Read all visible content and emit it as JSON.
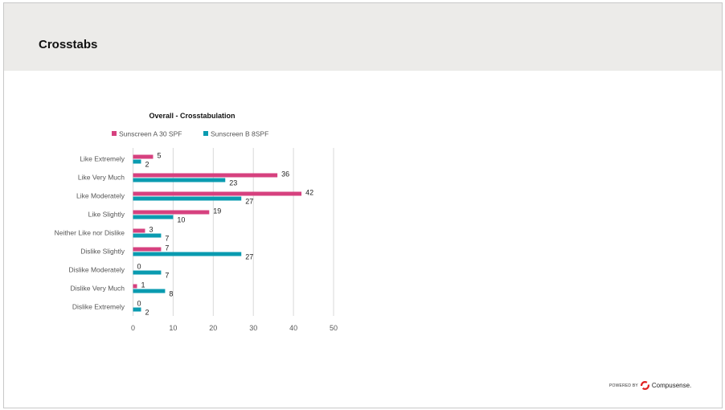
{
  "header": {
    "title": "Crosstabs"
  },
  "footer": {
    "powered_by": "POWERED BY",
    "brand": "Compusense."
  },
  "colors": {
    "series_a": "#d6417f",
    "series_b": "#0a9bb0",
    "header_bg": "#ecebe9"
  },
  "chart_data": {
    "type": "bar",
    "orientation": "horizontal",
    "title": "Overall - Crosstabulation",
    "categories": [
      "Like Extremely",
      "Like Very Much",
      "Like Moderately",
      "Like Slightly",
      "Neither Like nor Dislike",
      "Dislike Slightly",
      "Dislike Moderately",
      "Dislike Very Much",
      "Dislike Extremely"
    ],
    "series": [
      {
        "name": "Sunscreen A 30 SPF",
        "values": [
          5,
          36,
          42,
          19,
          3,
          7,
          0,
          1,
          0
        ]
      },
      {
        "name": "Sunscreen B 8SPF",
        "values": [
          2,
          23,
          27,
          10,
          7,
          27,
          7,
          8,
          2
        ]
      }
    ],
    "xlim": [
      0,
      50
    ],
    "xticks": [
      0,
      10,
      20,
      30,
      40,
      50
    ],
    "grid": true,
    "legend": "top"
  }
}
